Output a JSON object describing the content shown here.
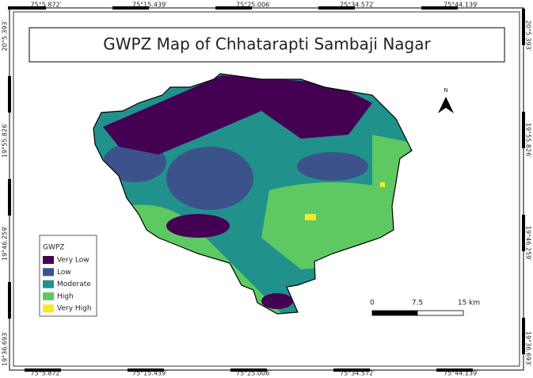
{
  "title": "GWPZ Map of Chhatarapti Sambaji Nagar",
  "x_labels": [
    "75°5.872′",
    "75°15.439′",
    "75°25.006′",
    "75°34.572′",
    "75°44.139′"
  ],
  "y_labels": [
    "20°5.393′",
    "19°55.826′",
    "19°46.259′",
    "19°36.693′"
  ],
  "legend": {
    "title": "GWPZ",
    "items": [
      {
        "label": "Very Low",
        "color": "#440154"
      },
      {
        "label": "Low",
        "color": "#3b528b"
      },
      {
        "label": "Moderate",
        "color": "#21918c"
      },
      {
        "label": "High",
        "color": "#5ec962"
      },
      {
        "label": "Very High",
        "color": "#fde725"
      }
    ]
  },
  "scale_bar": {
    "labels": [
      "0",
      "7.5",
      "15 km"
    ]
  },
  "north": "N"
}
